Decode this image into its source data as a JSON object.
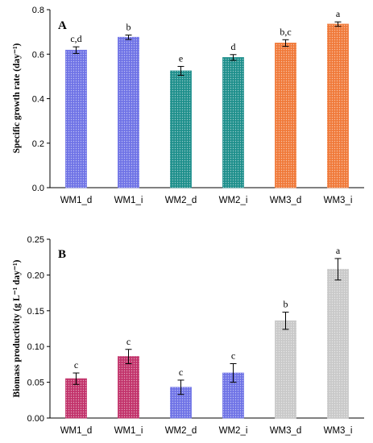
{
  "chart_data": [
    {
      "type": "bar",
      "panel_label": "A",
      "ylabel": "Specific growth rate (day⁻¹)",
      "categories": [
        "WM1_d",
        "WM1_i",
        "WM2_d",
        "WM2_i",
        "WM3_d",
        "WM3_i"
      ],
      "values": [
        0.618,
        0.676,
        0.525,
        0.585,
        0.65,
        0.735
      ],
      "errors": [
        0.015,
        0.01,
        0.02,
        0.013,
        0.015,
        0.01
      ],
      "significance": [
        "c,d",
        "b",
        "e",
        "d",
        "b,c",
        "a"
      ],
      "colors": [
        "#6f73e6",
        "#6f73e6",
        "#1e8f8c",
        "#1e8f8c",
        "#f07a3a",
        "#f07a3a"
      ],
      "ylim": [
        0,
        0.8
      ],
      "yticks": [
        "0.0",
        "0.2",
        "0.4",
        "0.6",
        "0.8"
      ],
      "grid": false
    },
    {
      "type": "bar",
      "panel_label": "B",
      "ylabel": "Biomass productivity (g L⁻¹ day⁻¹)",
      "categories": [
        "WM1_d",
        "WM1_i",
        "WM2_d",
        "WM2_i",
        "WM3_d",
        "WM3_i"
      ],
      "values": [
        0.055,
        0.086,
        0.043,
        0.063,
        0.136,
        0.208
      ],
      "errors": [
        0.008,
        0.01,
        0.01,
        0.013,
        0.012,
        0.015
      ],
      "significance": [
        "c",
        "c",
        "c",
        "c",
        "b",
        "a"
      ],
      "colors": [
        "#c2336b",
        "#c2336b",
        "#6f73e6",
        "#6f73e6",
        "#c9c9c9",
        "#c9c9c9"
      ],
      "ylim": [
        0,
        0.25
      ],
      "yticks": [
        "0.00",
        "0.05",
        "0.10",
        "0.15",
        "0.20",
        "0.25"
      ],
      "grid": false
    }
  ]
}
